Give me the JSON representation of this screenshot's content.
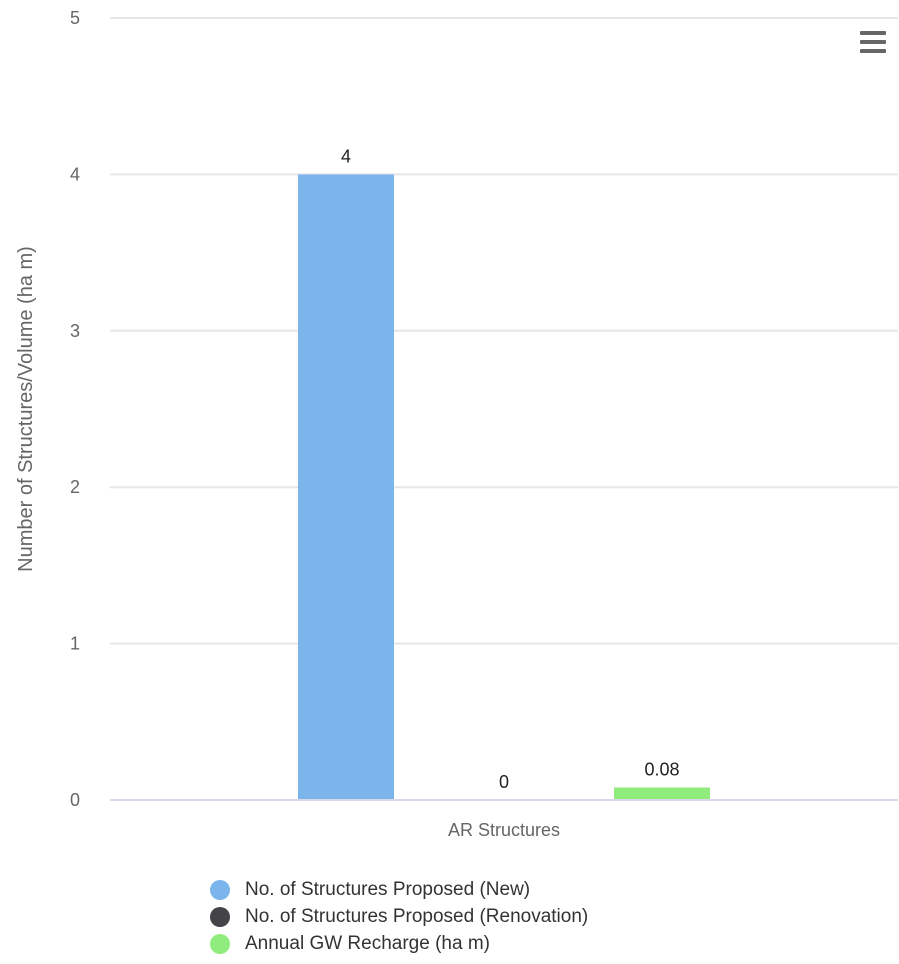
{
  "chart_data": {
    "type": "bar",
    "categories": [
      "AR Structures"
    ],
    "series": [
      {
        "name": "No. of Structures Proposed (New)",
        "values": [
          4
        ],
        "color": "#7cb5ec",
        "value_labels": [
          "4"
        ]
      },
      {
        "name": "No. of Structures Proposed (Renovation)",
        "values": [
          0
        ],
        "color": "#434348",
        "value_labels": [
          "0"
        ]
      },
      {
        "name": "Annual GW Recharge (ha m)",
        "values": [
          0.08
        ],
        "color": "#90ed7d",
        "value_labels": [
          "0.08"
        ]
      }
    ],
    "title": "",
    "xlabel": "",
    "ylabel": "Number of Structures/Volume (ha m)",
    "ylim": [
      0,
      5
    ],
    "yticks": [
      "0",
      "1",
      "2",
      "3",
      "4",
      "5"
    ],
    "grid": true,
    "legend_position": "bottom"
  },
  "toolbar": {
    "menu_icon": "hamburger-menu-icon"
  }
}
